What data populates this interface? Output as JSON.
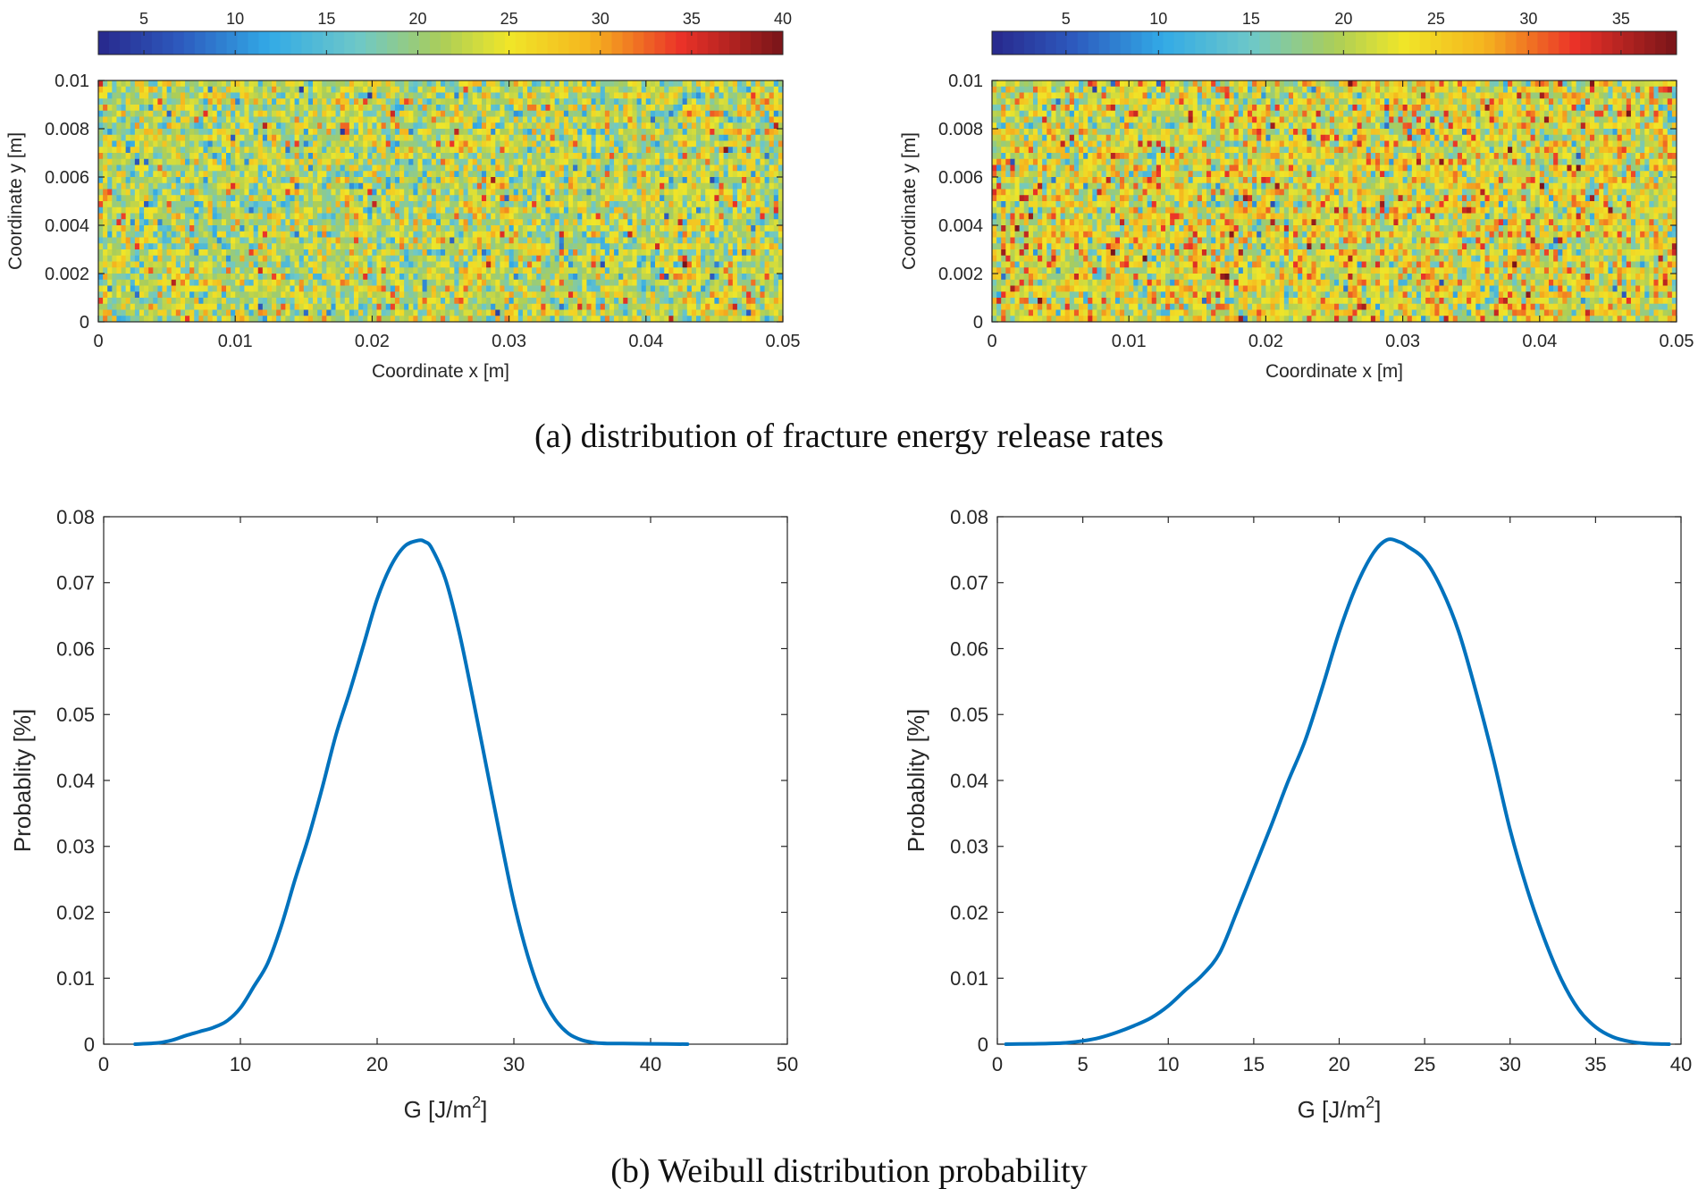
{
  "captions": {
    "a": "(a) distribution of fracture energy release rates",
    "b": "(b) Weibull distribution probability"
  },
  "chart_data": [
    {
      "id": "heatmap-left",
      "type": "heatmap",
      "xlabel": "Coordinate x [m]",
      "ylabel": "Coordinate y [m]",
      "xlim": [
        0,
        0.05
      ],
      "ylim": [
        0,
        0.01
      ],
      "xticks": [
        "0",
        "0.01",
        "0.02",
        "0.03",
        "0.04",
        "0.05"
      ],
      "yticks": [
        "0",
        "0.002",
        "0.004",
        "0.006",
        "0.008",
        "0.01"
      ],
      "grid": {
        "cols": 150,
        "rows": 40
      },
      "distribution": {
        "kind": "weibull-like",
        "mean": 22,
        "sd": 5.0,
        "min": 4,
        "max": 40
      },
      "colorbar": {
        "location": "top",
        "range": [
          2.5,
          40
        ],
        "ticks": [
          5,
          10,
          15,
          20,
          25,
          30,
          35,
          40
        ],
        "tick_labels": [
          "5",
          "10",
          "15",
          "20",
          "25",
          "30",
          "35",
          "40"
        ],
        "colormap": "jet-like"
      }
    },
    {
      "id": "heatmap-right",
      "type": "heatmap",
      "xlabel": "Coordinate x [m]",
      "ylabel": "Coordinate y [m]",
      "xlim": [
        0,
        0.05
      ],
      "ylim": [
        0,
        0.01
      ],
      "xticks": [
        "0",
        "0.01",
        "0.02",
        "0.03",
        "0.04",
        "0.05"
      ],
      "yticks": [
        "0",
        "0.002",
        "0.004",
        "0.006",
        "0.008",
        "0.01"
      ],
      "grid": {
        "cols": 150,
        "rows": 40
      },
      "distribution": {
        "kind": "weibull-like",
        "mean": 22.5,
        "sd": 5.3,
        "min": 1,
        "max": 38
      },
      "colorbar": {
        "location": "top",
        "range": [
          1,
          38
        ],
        "ticks": [
          5,
          10,
          15,
          20,
          25,
          30,
          35
        ],
        "tick_labels": [
          "5",
          "10",
          "15",
          "20",
          "25",
          "30",
          "35"
        ],
        "colormap": "jet-like"
      }
    },
    {
      "id": "line-left",
      "type": "line",
      "xlabel": "G [J/m",
      "xlabel_sup": "2",
      "xlabel_end": "]",
      "ylabel": "Probablity [%]",
      "xlim": [
        0,
        50
      ],
      "ylim": [
        0,
        0.08
      ],
      "xticks": [
        "0",
        "10",
        "20",
        "30",
        "40",
        "50"
      ],
      "yticks": [
        "0",
        "0.01",
        "0.02",
        "0.03",
        "0.04",
        "0.05",
        "0.06",
        "0.07",
        "0.08"
      ],
      "line_color": "#0072bd",
      "x": [
        2.3,
        4,
        5,
        6,
        7,
        8,
        9,
        10,
        11,
        12,
        13,
        14,
        15,
        16,
        17,
        18,
        19,
        20,
        21,
        22,
        23,
        23.5,
        24,
        25,
        26,
        27,
        28,
        29,
        30,
        31,
        32,
        33,
        34,
        35,
        36,
        37,
        38,
        40,
        42.7
      ],
      "y": [
        0,
        0.0002,
        0.0006,
        0.0013,
        0.0019,
        0.0025,
        0.0035,
        0.0055,
        0.0088,
        0.0123,
        0.018,
        0.025,
        0.0315,
        0.039,
        0.047,
        0.0535,
        0.0605,
        0.0675,
        0.0725,
        0.0755,
        0.0764,
        0.0762,
        0.0752,
        0.0705,
        0.0625,
        0.0525,
        0.042,
        0.0315,
        0.0215,
        0.0135,
        0.0075,
        0.0038,
        0.0016,
        0.0006,
        0.0002,
        0.0001,
        0.0001,
        5e-05,
        0
      ]
    },
    {
      "id": "line-right",
      "type": "line",
      "xlabel": "G [J/m",
      "xlabel_sup": "2",
      "xlabel_end": "]",
      "ylabel": "Probablity [%]",
      "xlim": [
        0,
        40
      ],
      "ylim": [
        0,
        0.08
      ],
      "xticks": [
        "0",
        "5",
        "10",
        "15",
        "20",
        "25",
        "30",
        "35",
        "40"
      ],
      "yticks": [
        "0",
        "0.01",
        "0.02",
        "0.03",
        "0.04",
        "0.05",
        "0.06",
        "0.07",
        "0.08"
      ],
      "line_color": "#0072bd",
      "x": [
        0.5,
        2,
        3,
        4,
        5,
        6,
        7,
        8,
        9,
        10,
        11,
        12,
        13,
        14,
        15,
        16,
        17,
        18,
        19,
        20,
        21,
        22,
        22.8,
        23.5,
        24,
        25,
        26,
        27,
        28,
        29,
        30,
        31,
        32,
        33,
        34,
        35,
        36,
        37,
        38,
        39.3
      ],
      "y": [
        0,
        5e-05,
        0.0001,
        0.0002,
        0.0005,
        0.001,
        0.0018,
        0.0028,
        0.004,
        0.0058,
        0.0082,
        0.0105,
        0.0138,
        0.02,
        0.0265,
        0.033,
        0.0398,
        0.046,
        0.054,
        0.0625,
        0.0695,
        0.0745,
        0.0765,
        0.0762,
        0.0755,
        0.0735,
        0.069,
        0.0625,
        0.0535,
        0.0435,
        0.0325,
        0.0235,
        0.016,
        0.0098,
        0.0053,
        0.0026,
        0.0011,
        0.0004,
        0.0001,
        0
      ]
    }
  ]
}
